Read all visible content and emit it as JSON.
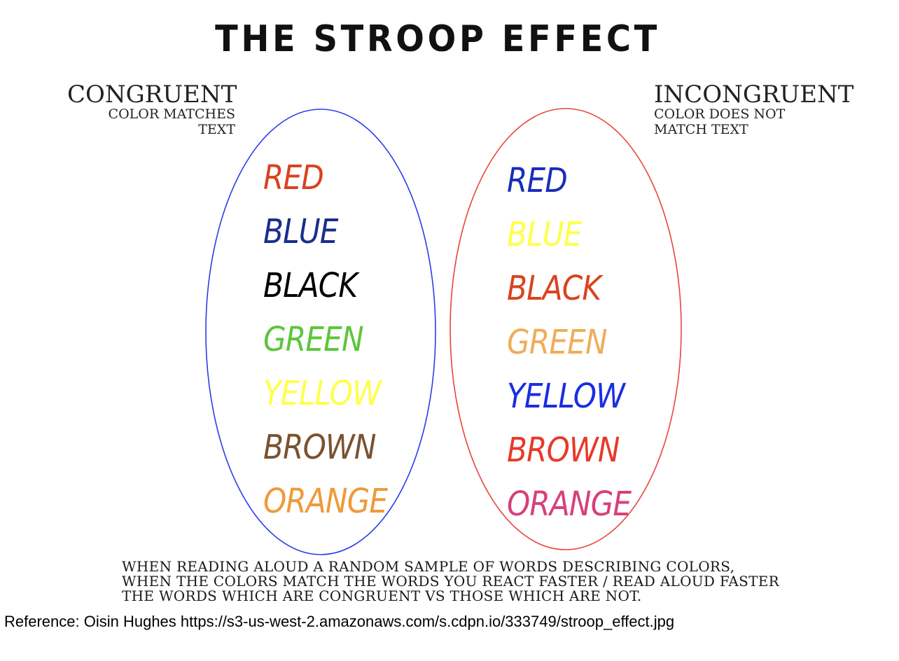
{
  "title": "THE STROOP EFFECT",
  "congruent": {
    "heading": "CONGRUENT",
    "subtitle_line1": "COLOR MATCHES",
    "subtitle_line2": "TEXT",
    "ellipse_color": "#2a3ee8",
    "words": [
      {
        "text": "RED",
        "color": "#d9431f"
      },
      {
        "text": "BLUE",
        "color": "#1a2e8c"
      },
      {
        "text": "BLACK",
        "color": "#000000"
      },
      {
        "text": "GREEN",
        "color": "#5cc63a"
      },
      {
        "text": "YELLOW",
        "color": "#ffff4a"
      },
      {
        "text": "BROWN",
        "color": "#7a5230"
      },
      {
        "text": "ORANGE",
        "color": "#ef9a3a"
      }
    ]
  },
  "incongruent": {
    "heading": "INCONGRUENT",
    "subtitle_line1": "COLOR DOES NOT",
    "subtitle_line2": "MATCH TEXT",
    "ellipse_color": "#e8453a",
    "words": [
      {
        "text": "RED",
        "color": "#1a2eb8"
      },
      {
        "text": "BLUE",
        "color": "#ffff4a"
      },
      {
        "text": "BLACK",
        "color": "#d9431f"
      },
      {
        "text": "GREEN",
        "color": "#efae5a"
      },
      {
        "text": "YELLOW",
        "color": "#1a2ee0"
      },
      {
        "text": "BROWN",
        "color": "#e83a2a"
      },
      {
        "text": "ORANGE",
        "color": "#d8407a"
      }
    ]
  },
  "caption": {
    "line1": "WHEN READING ALOUD A RANDOM SAMPLE OF WORDS DESCRIBING COLORS,",
    "line2": "WHEN THE COLORS MATCH THE WORDS YOU REACT FASTER / READ ALOUD FASTER",
    "line3": "THE WORDS WHICH ARE CONGRUENT VS THOSE WHICH ARE NOT."
  },
  "reference": "Reference: Oisin Hughes https://s3-us-west-2.amazonaws.com/s.cdpn.io/333749/stroop_effect.jpg"
}
